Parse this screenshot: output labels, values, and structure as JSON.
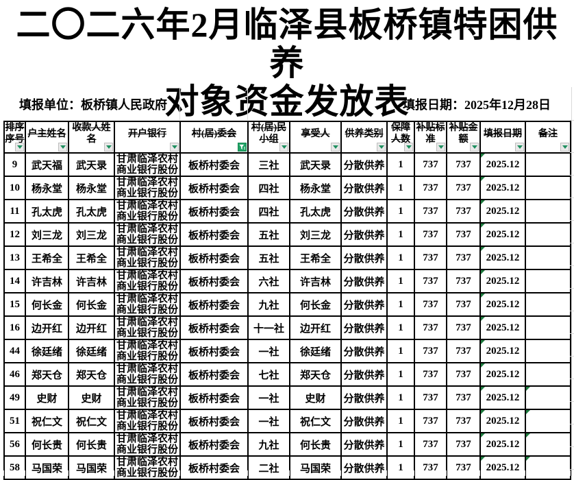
{
  "title": {
    "line1": "二〇二六年2月临泽县板桥镇特困供养",
    "line2": "对象资金发放表"
  },
  "info": {
    "unit": "填报单位：板桥镇人民政府",
    "date": "填报日期：2025年12月28日"
  },
  "table": {
    "columns": [
      {
        "label": "排序序号",
        "filter": "normal"
      },
      {
        "label": "户主姓名",
        "filter": "normal"
      },
      {
        "label": "收款人姓名",
        "filter": "normal"
      },
      {
        "label": "开户银行",
        "filter": "normal"
      },
      {
        "label": "村(居)委会",
        "filter": "active"
      },
      {
        "label": "村(居)民小组",
        "filter": "normal"
      },
      {
        "label": "享受人",
        "filter": "normal"
      },
      {
        "label": "供养类别",
        "filter": "normal"
      },
      {
        "label": "保障人数",
        "filter": "normal"
      },
      {
        "label": "补贴标准",
        "filter": "normal"
      },
      {
        "label": "补贴金额",
        "filter": "normal"
      },
      {
        "label": "填报日期",
        "filter": "normal"
      },
      {
        "label": "备注",
        "filter": "normal"
      }
    ],
    "rows": [
      {
        "seq": "9",
        "owner": "武天福",
        "payee": "武天录",
        "bank": "甘肃临泽农村商业银行股份",
        "committee": "板桥村委会",
        "group": "三社",
        "beneficiary": "武天录",
        "type": "分散供养",
        "count": "1",
        "standard": "737",
        "amount": "737",
        "date": "2025.12",
        "note": "",
        "date_flag": true,
        "note_flag": false
      },
      {
        "seq": "10",
        "owner": "杨永堂",
        "payee": "杨永堂",
        "bank": "甘肃临泽农村商业银行股份",
        "committee": "板桥村委会",
        "group": "四社",
        "beneficiary": "杨永堂",
        "type": "分散供养",
        "count": "1",
        "standard": "737",
        "amount": "737",
        "date": "2025.12",
        "note": "",
        "date_flag": true,
        "note_flag": false
      },
      {
        "seq": "11",
        "owner": "孔太虎",
        "payee": "孔太虎",
        "bank": "甘肃临泽农村商业银行股份",
        "committee": "板桥村委会",
        "group": "四社",
        "beneficiary": "孔太虎",
        "type": "分散供养",
        "count": "1",
        "standard": "737",
        "amount": "737",
        "date": "2025.12",
        "note": "",
        "date_flag": true,
        "note_flag": false
      },
      {
        "seq": "12",
        "owner": "刘三龙",
        "payee": "刘三龙",
        "bank": "甘肃临泽农村商业银行股份",
        "committee": "板桥村委会",
        "group": "五社",
        "beneficiary": "刘三龙",
        "type": "分散供养",
        "count": "1",
        "standard": "737",
        "amount": "737",
        "date": "2025.12",
        "note": "",
        "date_flag": true,
        "note_flag": false
      },
      {
        "seq": "13",
        "owner": "王希全",
        "payee": "王希全",
        "bank": "甘肃临泽农村商业银行股份",
        "committee": "板桥村委会",
        "group": "五社",
        "beneficiary": "王希全",
        "type": "分散供养",
        "count": "1",
        "standard": "737",
        "amount": "737",
        "date": "2025.12",
        "note": "",
        "date_flag": true,
        "note_flag": false
      },
      {
        "seq": "14",
        "owner": "许吉林",
        "payee": "许吉林",
        "bank": "甘肃临泽农村商业银行股份",
        "committee": "板桥村委会",
        "group": "六社",
        "beneficiary": "许吉林",
        "type": "分散供养",
        "count": "1",
        "standard": "737",
        "amount": "737",
        "date": "2025.12",
        "note": "",
        "date_flag": true,
        "note_flag": false
      },
      {
        "seq": "15",
        "owner": "何长金",
        "payee": "何长金",
        "bank": "甘肃临泽农村商业银行股份",
        "committee": "板桥村委会",
        "group": "九社",
        "beneficiary": "何长金",
        "type": "分散供养",
        "count": "1",
        "standard": "737",
        "amount": "737",
        "date": "2025.12",
        "note": "",
        "date_flag": true,
        "note_flag": false
      },
      {
        "seq": "16",
        "owner": "边开红",
        "payee": "边开红",
        "bank": "甘肃临泽农村商业银行股份",
        "committee": "板桥村委会",
        "group": "十一社",
        "beneficiary": "边开红",
        "type": "分散供养",
        "count": "1",
        "standard": "737",
        "amount": "737",
        "date": "2025.12",
        "note": "",
        "date_flag": true,
        "note_flag": false
      },
      {
        "seq": "44",
        "owner": "徐廷绪",
        "payee": "徐廷绪",
        "bank": "甘肃临泽农村商业银行股份",
        "committee": "板桥村委会",
        "group": "一社",
        "beneficiary": "徐廷绪",
        "type": "分散供养",
        "count": "1",
        "standard": "737",
        "amount": "737",
        "date": "2025.12",
        "note": "",
        "date_flag": true,
        "note_flag": false
      },
      {
        "seq": "46",
        "owner": "郑天仓",
        "payee": "郑天仓",
        "bank": "甘肃临泽农村商业银行股份",
        "committee": "板桥村委会",
        "group": "七社",
        "beneficiary": "郑天仓",
        "type": "分散供养",
        "count": "1",
        "standard": "737",
        "amount": "737",
        "date": "2025.12",
        "note": "",
        "date_flag": true,
        "note_flag": false
      },
      {
        "seq": "49",
        "owner": "史财",
        "payee": "史财",
        "bank": "甘肃临泽农村商业银行股份",
        "committee": "板桥村委会",
        "group": "一社",
        "beneficiary": "史财",
        "type": "分散供养",
        "count": "1",
        "standard": "737",
        "amount": "737",
        "date": "2025.12",
        "note": "",
        "date_flag": true,
        "note_flag": true
      },
      {
        "seq": "51",
        "owner": "祝仁文",
        "payee": "祝仁文",
        "bank": "甘肃临泽农村商业银行股份",
        "committee": "板桥村委会",
        "group": "一社",
        "beneficiary": "祝仁文",
        "type": "分散供养",
        "count": "1",
        "standard": "737",
        "amount": "737",
        "date": "2025.12",
        "note": "",
        "date_flag": true,
        "note_flag": true
      },
      {
        "seq": "56",
        "owner": "何长贵",
        "payee": "何长贵",
        "bank": "甘肃临泽农村商业银行股份",
        "committee": "板桥村委会",
        "group": "九社",
        "beneficiary": "何长贵",
        "type": "分散供养",
        "count": "1",
        "standard": "737",
        "amount": "737",
        "date": "2025.12",
        "note": "",
        "date_flag": true,
        "note_flag": true
      },
      {
        "seq": "58",
        "owner": "马国荣",
        "payee": "马国荣",
        "bank": "甘肃临泽农村商业银行股份",
        "committee": "板桥村委会",
        "group": "二社",
        "beneficiary": "马国荣",
        "type": "分散供养",
        "count": "1",
        "standard": "737",
        "amount": "737",
        "date": "2025.12",
        "note": "",
        "date_flag": true,
        "note_flag": true
      }
    ]
  },
  "colors": {
    "active_filter_green": "#21a366",
    "filter_arrow_green": "#1f8f5f",
    "flag_green": "#1d7c3f",
    "grid_gray": "#d9d9d9",
    "border_black": "#000000"
  },
  "icons": {
    "filter_dropdown": "filter-dropdown-arrow",
    "filter_active": "active-filter-funnel",
    "cell_flag": "error-check-corner-triangle"
  }
}
